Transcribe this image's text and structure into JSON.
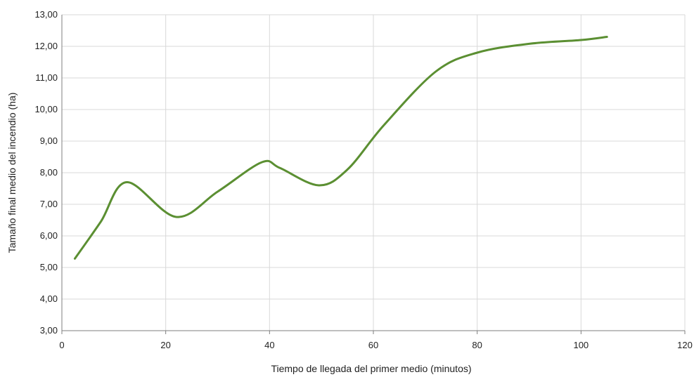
{
  "chart_data": {
    "type": "line",
    "title": "",
    "xlabel": "Tiempo de llegada del primer medio (minutos)",
    "ylabel": "Tamaño final medio del incendio (ha)",
    "xlim": [
      0,
      120
    ],
    "ylim": [
      3,
      13
    ],
    "x_ticks": [
      "0",
      "20",
      "40",
      "60",
      "80",
      "100",
      "120"
    ],
    "y_ticks": [
      "3,00",
      "4,00",
      "5,00",
      "6,00",
      "7,00",
      "8,00",
      "9,00",
      "10,00",
      "11,00",
      "12,00",
      "13,00"
    ],
    "grid": true,
    "legend": "none",
    "series": [
      {
        "color": "#5b8f32",
        "x": [
          2.5,
          7.5,
          12.5,
          22,
          30,
          38.5,
          42,
          49.5,
          55,
          62,
          72,
          80,
          90,
          100,
          105
        ],
        "y": [
          5.28,
          6.45,
          7.7,
          6.6,
          7.4,
          8.33,
          8.15,
          7.6,
          8.1,
          9.5,
          11.2,
          11.8,
          12.08,
          12.2,
          12.3
        ]
      }
    ]
  }
}
